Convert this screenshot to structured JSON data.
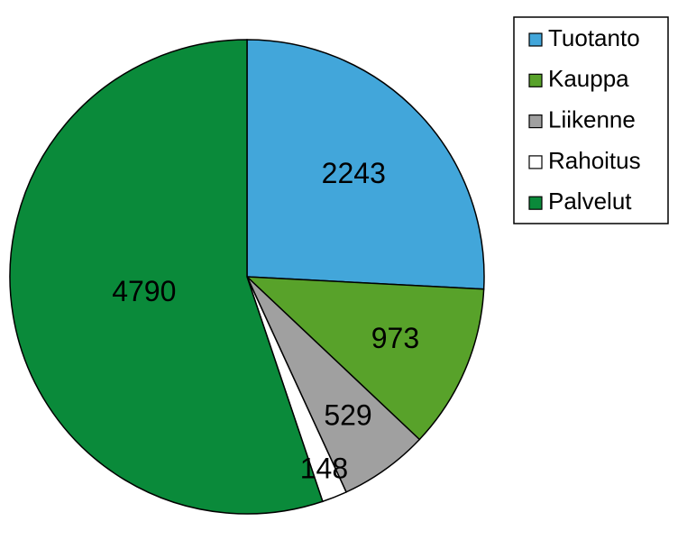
{
  "chart_data": {
    "type": "pie",
    "categories": [
      "Tuotanto",
      "Kauppa",
      "Liikenne",
      "Rahoitus",
      "Palvelut"
    ],
    "values": [
      2243,
      973,
      529,
      148,
      4790
    ],
    "colors": [
      "#42a6da",
      "#58a22a",
      "#a0a0a0",
      "#ffffff",
      "#0a8a3a"
    ],
    "legend": "top-right"
  }
}
